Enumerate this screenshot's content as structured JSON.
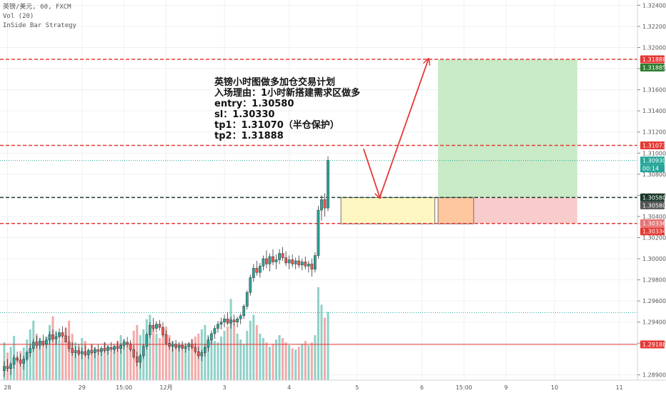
{
  "legend": {
    "line1": "英镑/美元, 60, FXCM",
    "line2": "Vol (20)",
    "line3": "InSide Bar Strategy"
  },
  "note": {
    "title": "英镑小时图做多加仓交易计划",
    "reason": "入场理由：1小时新搭建需求区做多",
    "entry": "entry：1.30580",
    "sl": "sl：1.30330",
    "tp1": "tp1：1.31070（半仓保护）",
    "tp2": "tp2：1.31888"
  },
  "colors": {
    "up": "#26a69a",
    "down": "#ef5350",
    "vol_up": "#8fd1c8",
    "vol_down": "#f4a9a8",
    "red_line": "#e53935",
    "black_line": "#1b3a2a",
    "grid": "#eef0f3",
    "profit_zone": "#c8eac6",
    "loss_zone": "#f9cccc",
    "entry_zone": "#fff7c2",
    "overlap_zone": "#ffc7a0",
    "arrow": "#e53935"
  },
  "chart_data": {
    "type": "candlestick",
    "symbol": "英镑/美元, 60, FXCM",
    "ylim": [
      1.2885,
      1.3245
    ],
    "y_ticks": [
      "1.28900",
      "1.29200",
      "1.29400",
      "1.29600",
      "1.29800",
      "1.30000",
      "1.30200",
      "1.30400",
      "1.30600",
      "1.30800",
      "1.31000",
      "1.31200",
      "1.31400",
      "1.31600",
      "1.31800",
      "1.32000",
      "1.32200",
      "1.32400"
    ],
    "x_ticks": [
      {
        "label": "28",
        "bar": 1
      },
      {
        "label": "29",
        "bar": 24
      },
      {
        "label": "15:00",
        "bar": 37
      },
      {
        "label": "12月",
        "bar": 50
      },
      {
        "label": "3",
        "bar": 68
      },
      {
        "label": "4",
        "bar": 88
      },
      {
        "label": "5",
        "bar": 109
      },
      {
        "label": "6",
        "bar": 129
      },
      {
        "label": "15:00",
        "bar": 142
      },
      {
        "label": "9",
        "bar": 155
      },
      {
        "label": "10",
        "bar": 170
      },
      {
        "label": "11",
        "bar": 190
      }
    ],
    "horizontal_lines": [
      {
        "name": "tp2",
        "value": 1.31888,
        "style": "dashed",
        "color": "red"
      },
      {
        "name": "tp1",
        "value": 1.31073,
        "style": "dashed",
        "color": "red"
      },
      {
        "name": "entry",
        "value": 1.3058,
        "style": "dashed",
        "color": "black"
      },
      {
        "name": "stop",
        "value": 1.30334,
        "style": "dashed",
        "color": "red"
      },
      {
        "name": "last",
        "value": 1.3093,
        "style": "dotted",
        "color": "green"
      },
      {
        "name": "support",
        "value": 1.29188,
        "style": "solid",
        "color": "red"
      }
    ],
    "price_labels": [
      {
        "text": "1.31888",
        "value": 1.31888,
        "bg": "#e53935"
      },
      {
        "text": "1.31885",
        "value": 1.31885,
        "bg": "#2e7d32"
      },
      {
        "text": "1.31073",
        "value": 1.31073,
        "bg": "#e53935"
      },
      {
        "text": "1.30930",
        "value": 1.3093,
        "bg": "#26a69a"
      },
      {
        "text": "00:14",
        "value": 1.3093,
        "bg": "#26a69a"
      },
      {
        "text": "1.30580",
        "value": 1.3058,
        "bg": "#1b3a2a"
      },
      {
        "text": "1.30580",
        "value": 1.3058,
        "bg": "#555555"
      },
      {
        "text": "1.30336",
        "value": 1.30336,
        "bg": "#e57373"
      },
      {
        "text": "1.30334",
        "value": 1.30334,
        "bg": "#e53935"
      },
      {
        "text": "1.29188",
        "value": 1.29188,
        "bg": "#e53935"
      }
    ],
    "zones": [
      {
        "name": "entry-zone",
        "from_bar": 104,
        "to_bar": 133,
        "top": 1.3058,
        "bottom": 1.3033
      },
      {
        "name": "profit-zone",
        "from_bar": 134,
        "to_bar": 177,
        "top": 1.31888,
        "bottom": 1.3058
      },
      {
        "name": "loss-zone",
        "from_bar": 134,
        "to_bar": 177,
        "top": 1.3058,
        "bottom": 1.30334
      }
    ],
    "arrows": [
      {
        "from": [
          111,
          1.3104
        ],
        "to": [
          116,
          1.3058
        ]
      },
      {
        "from": [
          116,
          1.3058
        ],
        "to": [
          131,
          1.31888
        ]
      }
    ],
    "candles": [
      [
        1.2894,
        1.2903,
        1.2888,
        1.2898
      ],
      [
        1.2898,
        1.2905,
        1.2893,
        1.2896
      ],
      [
        1.2896,
        1.2902,
        1.289,
        1.29
      ],
      [
        1.29,
        1.2909,
        1.2896,
        1.2906
      ],
      [
        1.2906,
        1.2912,
        1.2902,
        1.2904
      ],
      [
        1.2904,
        1.291,
        1.2898,
        1.2901
      ],
      [
        1.2901,
        1.2908,
        1.2895,
        1.2905
      ],
      [
        1.2905,
        1.2913,
        1.2903,
        1.2911
      ],
      [
        1.2911,
        1.2919,
        1.2907,
        1.2915
      ],
      [
        1.2915,
        1.2924,
        1.2912,
        1.2921
      ],
      [
        1.2921,
        1.2927,
        1.2915,
        1.2918
      ],
      [
        1.2918,
        1.2925,
        1.2914,
        1.2922
      ],
      [
        1.2922,
        1.2928,
        1.2917,
        1.2919
      ],
      [
        1.2919,
        1.2926,
        1.2915,
        1.2923
      ],
      [
        1.2923,
        1.2931,
        1.2919,
        1.2928
      ],
      [
        1.2928,
        1.2933,
        1.2921,
        1.2924
      ],
      [
        1.2924,
        1.293,
        1.2919,
        1.2926
      ],
      [
        1.2926,
        1.2934,
        1.2922,
        1.293
      ],
      [
        1.293,
        1.2936,
        1.2925,
        1.2927
      ],
      [
        1.2927,
        1.2935,
        1.2924,
        1.2921
      ],
      [
        1.2921,
        1.2927,
        1.2912,
        1.2915
      ],
      [
        1.2915,
        1.2921,
        1.2908,
        1.2911
      ],
      [
        1.2911,
        1.2917,
        1.2906,
        1.2913
      ],
      [
        1.2913,
        1.2919,
        1.2908,
        1.291
      ],
      [
        1.291,
        1.2916,
        1.2905,
        1.2912
      ],
      [
        1.2912,
        1.2918,
        1.2907,
        1.2909
      ],
      [
        1.2909,
        1.2915,
        1.2905,
        1.2913
      ],
      [
        1.2913,
        1.2919,
        1.2909,
        1.2911
      ],
      [
        1.2911,
        1.2916,
        1.2906,
        1.2914
      ],
      [
        1.2914,
        1.2919,
        1.2909,
        1.2912
      ],
      [
        1.2912,
        1.2917,
        1.2908,
        1.2915
      ],
      [
        1.2915,
        1.2921,
        1.2911,
        1.2913
      ],
      [
        1.2913,
        1.2918,
        1.2909,
        1.2916
      ],
      [
        1.2916,
        1.2921,
        1.2912,
        1.2914
      ],
      [
        1.2914,
        1.2919,
        1.291,
        1.2917
      ],
      [
        1.2917,
        1.2922,
        1.2912,
        1.2915
      ],
      [
        1.2915,
        1.292,
        1.291,
        1.2918
      ],
      [
        1.2918,
        1.2924,
        1.2914,
        1.2921
      ],
      [
        1.2921,
        1.2926,
        1.2916,
        1.2919
      ],
      [
        1.2919,
        1.2923,
        1.2912,
        1.2914
      ],
      [
        1.2914,
        1.2918,
        1.2905,
        1.2907
      ],
      [
        1.2907,
        1.2912,
        1.2898,
        1.2902
      ],
      [
        1.2902,
        1.291,
        1.2896,
        1.2908
      ],
      [
        1.2908,
        1.2919,
        1.2905,
        1.2917
      ],
      [
        1.2917,
        1.293,
        1.2914,
        1.2928
      ],
      [
        1.2928,
        1.294,
        1.2925,
        1.2937
      ],
      [
        1.2937,
        1.2944,
        1.2931,
        1.2934
      ],
      [
        1.2934,
        1.2941,
        1.293,
        1.2938
      ],
      [
        1.2938,
        1.2942,
        1.2932,
        1.2935
      ],
      [
        1.2935,
        1.294,
        1.2926,
        1.2928
      ],
      [
        1.2928,
        1.2932,
        1.2918,
        1.292
      ],
      [
        1.292,
        1.2925,
        1.2914,
        1.2917
      ],
      [
        1.2917,
        1.2922,
        1.2912,
        1.2919
      ],
      [
        1.2919,
        1.2923,
        1.2914,
        1.2916
      ],
      [
        1.2916,
        1.2921,
        1.2912,
        1.2918
      ],
      [
        1.2918,
        1.2922,
        1.2913,
        1.2915
      ],
      [
        1.2915,
        1.292,
        1.2911,
        1.2917
      ],
      [
        1.2917,
        1.2921,
        1.2913,
        1.2919
      ],
      [
        1.2919,
        1.2924,
        1.2914,
        1.2916
      ],
      [
        1.2916,
        1.292,
        1.291,
        1.2912
      ],
      [
        1.2912,
        1.2917,
        1.2905,
        1.2908
      ],
      [
        1.2908,
        1.2914,
        1.2903,
        1.2911
      ],
      [
        1.2911,
        1.2919,
        1.2907,
        1.2916
      ],
      [
        1.2916,
        1.2926,
        1.2912,
        1.2923
      ],
      [
        1.2923,
        1.2932,
        1.2919,
        1.2929
      ],
      [
        1.2929,
        1.2937,
        1.2924,
        1.2934
      ],
      [
        1.2934,
        1.2941,
        1.293,
        1.2938
      ],
      [
        1.2938,
        1.2944,
        1.2933,
        1.294
      ],
      [
        1.294,
        1.2947,
        1.2935,
        1.2943
      ],
      [
        1.2943,
        1.2949,
        1.2937,
        1.2939
      ],
      [
        1.2939,
        1.2945,
        1.2934,
        1.2942
      ],
      [
        1.2942,
        1.2947,
        1.2937,
        1.294
      ],
      [
        1.294,
        1.2945,
        1.2935,
        1.2943
      ],
      [
        1.2943,
        1.2948,
        1.2938,
        1.2946
      ],
      [
        1.2946,
        1.2957,
        1.2943,
        1.2955
      ],
      [
        1.2955,
        1.297,
        1.2952,
        1.2968
      ],
      [
        1.2968,
        1.2985,
        1.2965,
        1.2982
      ],
      [
        1.2982,
        1.2995,
        1.2978,
        1.2991
      ],
      [
        1.2991,
        1.2998,
        1.2984,
        1.2987
      ],
      [
        1.2987,
        1.2996,
        1.2982,
        1.2993
      ],
      [
        1.2993,
        1.3003,
        1.2989,
        1.3
      ],
      [
        1.3,
        1.3008,
        1.2991,
        1.2995
      ],
      [
        1.2995,
        1.3005,
        1.2988,
        1.3002
      ],
      [
        1.3002,
        1.3009,
        1.2994,
        1.2997
      ],
      [
        1.2997,
        1.3004,
        1.299,
        1.2999
      ],
      [
        1.2999,
        1.3009,
        1.2995,
        1.3005
      ],
      [
        1.3005,
        1.3011,
        1.2998,
        1.3001
      ],
      [
        1.3001,
        1.3007,
        1.2993,
        1.2996
      ],
      [
        1.2996,
        1.3003,
        1.299,
        1.2999
      ],
      [
        1.2999,
        1.3004,
        1.2992,
        1.2995
      ],
      [
        1.2995,
        1.3001,
        1.299,
        1.2998
      ],
      [
        1.2998,
        1.3003,
        1.2991,
        1.2994
      ],
      [
        1.2994,
        1.3,
        1.2989,
        1.2997
      ],
      [
        1.2997,
        1.3002,
        1.299,
        1.2993
      ],
      [
        1.2993,
        1.2998,
        1.2987,
        1.2995
      ],
      [
        1.2995,
        1.3,
        1.2983,
        1.299
      ],
      [
        1.299,
        1.3006,
        1.2987,
        1.3003
      ],
      [
        1.3003,
        1.305,
        1.3,
        1.3046
      ],
      [
        1.3046,
        1.306,
        1.3036,
        1.3056
      ],
      [
        1.3056,
        1.3062,
        1.304,
        1.3048
      ],
      [
        1.3048,
        1.3097,
        1.3045,
        1.3093
      ]
    ],
    "volume_min": 0,
    "volume_max": 1300,
    "volumes": [
      520,
      380,
      460,
      610,
      330,
      400,
      450,
      560,
      700,
      820,
      640,
      580,
      520,
      600,
      760,
      880,
      680,
      540,
      620,
      720,
      820,
      640,
      520,
      460,
      580,
      540,
      420,
      500,
      460,
      380,
      440,
      520,
      480,
      400,
      460,
      540,
      620,
      560,
      480,
      520,
      680,
      760,
      620,
      700,
      840,
      900,
      720,
      640,
      580,
      660,
      740,
      620,
      540,
      500,
      460,
      420,
      480,
      520,
      560,
      600,
      640,
      700,
      760,
      620,
      580,
      540,
      520,
      600,
      680,
      740,
      1120,
      780,
      640,
      560,
      500,
      680,
      820,
      900,
      760,
      640,
      580,
      520,
      460,
      500,
      560,
      620,
      580,
      520,
      480,
      440,
      420,
      460,
      500,
      540,
      480,
      520,
      620,
      1280,
      1040,
      860,
      940
    ]
  }
}
